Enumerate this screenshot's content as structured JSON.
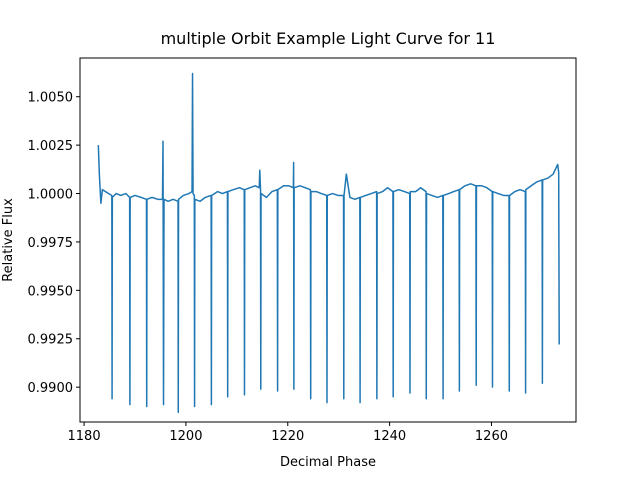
{
  "chart_data": {
    "type": "line",
    "title": "multiple Orbit Example Light Curve for 11",
    "x_label": "Decimal Phase",
    "y_label": "Relative Flux",
    "xlim": [
      1179.2,
      1276.6
    ],
    "ylim": [
      0.9882,
      1.007
    ],
    "xticks": [
      1180,
      1200,
      1220,
      1240,
      1260
    ],
    "yticks": [
      {
        "value": 0.99,
        "label": "0.9900"
      },
      {
        "value": 0.9925,
        "label": "0.9925"
      },
      {
        "value": 0.995,
        "label": "0.9950"
      },
      {
        "value": 0.9975,
        "label": "0.9975"
      },
      {
        "value": 1.0,
        "label": "1.0000"
      },
      {
        "value": 1.0025,
        "label": "1.0025"
      },
      {
        "value": 1.005,
        "label": "1.0050"
      }
    ],
    "grid": false,
    "x": [
      1182.8,
      1183.0,
      1183.3,
      1183.6,
      1184.2,
      1184.8,
      1185.45,
      1185.5,
      1185.55,
      1186.3,
      1187.2,
      1188.2,
      1188.95,
      1189.0,
      1189.05,
      1190.0,
      1191.2,
      1192.25,
      1192.3,
      1192.35,
      1193.3,
      1194.5,
      1195.4,
      1195.5,
      1195.6,
      1195.7,
      1196.5,
      1197.5,
      1198.45,
      1198.5,
      1198.55,
      1199.5,
      1200.6,
      1201.2,
      1201.3,
      1201.4,
      1201.65,
      1201.7,
      1201.75,
      1202.8,
      1203.8,
      1204.95,
      1205.0,
      1205.05,
      1206.2,
      1207.2,
      1208.15,
      1208.2,
      1208.25,
      1209.3,
      1210.5,
      1211.45,
      1211.5,
      1211.55,
      1212.6,
      1213.6,
      1214.4,
      1214.5,
      1214.65,
      1214.7,
      1214.75,
      1215.8,
      1216.9,
      1217.95,
      1218.0,
      1218.05,
      1219.2,
      1220.2,
      1221.1,
      1221.15,
      1221.2,
      1221.25,
      1222.4,
      1223.4,
      1224.45,
      1224.5,
      1224.55,
      1225.6,
      1226.6,
      1227.65,
      1227.7,
      1227.75,
      1228.8,
      1229.9,
      1230.95,
      1231.0,
      1231.05,
      1231.5,
      1232.2,
      1233.2,
      1234.15,
      1234.2,
      1234.25,
      1235.3,
      1236.4,
      1237.45,
      1237.5,
      1237.55,
      1238.6,
      1239.6,
      1240.65,
      1240.7,
      1240.75,
      1241.8,
      1242.9,
      1243.95,
      1244.0,
      1244.05,
      1245.1,
      1246.1,
      1247.15,
      1247.2,
      1247.25,
      1248.3,
      1249.4,
      1250.45,
      1250.5,
      1250.55,
      1251.6,
      1252.6,
      1253.65,
      1253.7,
      1253.75,
      1254.8,
      1255.9,
      1256.95,
      1257.0,
      1257.05,
      1258.1,
      1259.1,
      1260.15,
      1260.2,
      1260.25,
      1261.3,
      1262.4,
      1263.45,
      1263.5,
      1263.55,
      1264.6,
      1265.6,
      1266.65,
      1266.7,
      1266.75,
      1267.8,
      1268.9,
      1269.95,
      1270.0,
      1270.05,
      1271.1,
      1272.1,
      1273.0,
      1273.2,
      1273.3
    ],
    "series": [
      {
        "color": "#1f77b4",
        "values": [
          1.0025,
          1.001,
          0.9995,
          1.0002,
          1.0001,
          1.0,
          0.9999,
          0.9894,
          0.9998,
          1.0,
          0.9999,
          1.0,
          0.9998,
          0.9891,
          0.9998,
          0.9999,
          0.9998,
          0.9997,
          0.989,
          0.9997,
          0.9998,
          0.9997,
          0.9997,
          1.0027,
          0.9891,
          0.9997,
          0.9996,
          0.9997,
          0.9996,
          0.9887,
          0.9997,
          0.9999,
          1.0,
          1.0001,
          1.0062,
          1.0,
          0.9999,
          0.989,
          0.9997,
          0.9996,
          0.9998,
          0.9999,
          0.9891,
          0.9999,
          1.0001,
          1.0,
          1.0001,
          0.9895,
          1.0001,
          1.0002,
          1.0003,
          1.0002,
          0.9896,
          1.0002,
          1.0003,
          1.0004,
          1.0003,
          1.0012,
          1.0002,
          0.9899,
          1.0,
          0.9998,
          1.0001,
          1.0002,
          0.9898,
          1.0002,
          1.0004,
          1.0004,
          1.0003,
          1.0016,
          0.9899,
          1.0003,
          1.0004,
          1.0003,
          1.0002,
          0.9894,
          1.0001,
          1.0001,
          1.0,
          0.9999,
          0.9892,
          0.9999,
          1.0,
          0.9999,
          0.9999,
          0.9894,
          0.9999,
          1.001,
          0.9998,
          0.9997,
          0.9998,
          0.9892,
          0.9998,
          0.9999,
          1.0,
          1.0001,
          0.9894,
          1.0,
          1.0001,
          1.0003,
          1.0001,
          0.9895,
          1.0001,
          1.0002,
          1.0001,
          1.0,
          0.9897,
          1.0001,
          1.0001,
          1.0003,
          1.0001,
          0.9894,
          1.0,
          0.9999,
          0.9998,
          0.9999,
          0.9894,
          0.9999,
          1.0,
          1.0001,
          1.0002,
          0.9898,
          1.0002,
          1.0004,
          1.0005,
          1.0004,
          0.9901,
          1.0004,
          1.0004,
          1.0003,
          1.0001,
          0.99,
          1.0001,
          1.0,
          0.9999,
          0.9999,
          0.9898,
          0.9999,
          1.0001,
          1.0002,
          1.0001,
          0.9897,
          1.0002,
          1.0004,
          1.0006,
          1.0007,
          0.9902,
          1.0007,
          1.0008,
          1.001,
          1.0015,
          1.0011,
          0.9922
        ]
      }
    ]
  }
}
